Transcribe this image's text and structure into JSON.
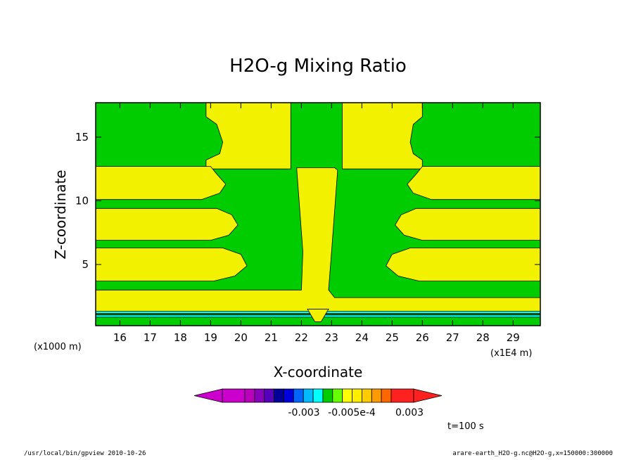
{
  "chart_data": {
    "type": "contour",
    "title": "H2O-g Mixing Ratio",
    "xlabel": "X-coordinate",
    "ylabel": "Z-coordinate",
    "x_unit_label": "(x1E4 m)",
    "y_unit_label": "(x1000 m)",
    "xlim": [
      15.2,
      29.9
    ],
    "ylim": [
      0.2,
      17.7
    ],
    "x_ticks": [
      16,
      17,
      18,
      19,
      20,
      21,
      22,
      23,
      24,
      25,
      26,
      27,
      28,
      29
    ],
    "x_tick_labels": [
      "16",
      "17",
      "18",
      "19",
      "20",
      "21",
      "22",
      "23",
      "24",
      "25",
      "26",
      "27",
      "28",
      "29"
    ],
    "y_ticks": [
      5,
      10,
      15
    ],
    "y_tick_labels": [
      "5",
      "10",
      "15"
    ],
    "grid": false,
    "colors": {
      "green": "#00cc00",
      "yellow": "#f2f200",
      "cyan": "#00ffff",
      "blue": "#0066ff",
      "orange": "#ff9900",
      "red": "#ff2020",
      "magenta": "#cc00cc"
    },
    "regions": [
      {
        "color": "yellow",
        "polygon": [
          [
            18.85,
            17.7
          ],
          [
            21.65,
            17.7
          ],
          [
            21.65,
            12.5
          ],
          [
            18.85,
            12.5
          ],
          [
            18.85,
            13.2
          ],
          [
            19.3,
            13.7
          ],
          [
            19.4,
            14.6
          ],
          [
            19.2,
            16.0
          ],
          [
            18.85,
            16.6
          ]
        ]
      },
      {
        "color": "yellow",
        "polygon": [
          [
            23.35,
            17.7
          ],
          [
            26.0,
            17.7
          ],
          [
            26.0,
            16.6
          ],
          [
            25.7,
            16.0
          ],
          [
            25.6,
            14.6
          ],
          [
            25.7,
            13.7
          ],
          [
            26.0,
            13.2
          ],
          [
            26.0,
            12.5
          ],
          [
            23.35,
            12.5
          ]
        ]
      },
      {
        "color": "yellow",
        "polygon": [
          [
            15.2,
            12.7
          ],
          [
            19.0,
            12.7
          ],
          [
            19.2,
            12.1
          ],
          [
            19.5,
            11.3
          ],
          [
            19.3,
            10.6
          ],
          [
            18.7,
            10.1
          ],
          [
            15.2,
            10.1
          ]
        ]
      },
      {
        "color": "yellow",
        "polygon": [
          [
            29.9,
            12.7
          ],
          [
            26.0,
            12.7
          ],
          [
            25.8,
            12.1
          ],
          [
            25.5,
            11.3
          ],
          [
            25.7,
            10.6
          ],
          [
            26.3,
            10.1
          ],
          [
            29.9,
            10.1
          ]
        ]
      },
      {
        "color": "yellow",
        "polygon": [
          [
            15.2,
            9.4
          ],
          [
            19.2,
            9.4
          ],
          [
            19.7,
            8.9
          ],
          [
            19.9,
            8.1
          ],
          [
            19.6,
            7.3
          ],
          [
            19.0,
            6.9
          ],
          [
            15.2,
            6.9
          ]
        ]
      },
      {
        "color": "yellow",
        "polygon": [
          [
            29.9,
            9.4
          ],
          [
            25.8,
            9.4
          ],
          [
            25.3,
            8.9
          ],
          [
            25.1,
            8.1
          ],
          [
            25.4,
            7.3
          ],
          [
            26.0,
            6.9
          ],
          [
            29.9,
            6.9
          ]
        ]
      },
      {
        "color": "yellow",
        "polygon": [
          [
            15.2,
            6.3
          ],
          [
            19.4,
            6.3
          ],
          [
            20.0,
            5.8
          ],
          [
            20.2,
            4.9
          ],
          [
            19.8,
            4.1
          ],
          [
            19.1,
            3.7
          ],
          [
            15.2,
            3.7
          ]
        ]
      },
      {
        "color": "yellow",
        "polygon": [
          [
            29.9,
            6.3
          ],
          [
            25.6,
            6.3
          ],
          [
            25.0,
            5.8
          ],
          [
            24.8,
            4.9
          ],
          [
            25.2,
            4.1
          ],
          [
            25.9,
            3.7
          ],
          [
            29.9,
            3.7
          ]
        ]
      },
      {
        "color": "yellow",
        "polygon": [
          [
            21.85,
            12.6
          ],
          [
            23.1,
            12.6
          ],
          [
            23.2,
            12.4
          ],
          [
            23.0,
            6.0
          ],
          [
            22.9,
            3.0
          ],
          [
            23.1,
            2.4
          ],
          [
            29.9,
            2.4
          ],
          [
            29.9,
            1.1
          ],
          [
            15.2,
            1.1
          ],
          [
            15.2,
            3.0
          ],
          [
            22.0,
            3.0
          ],
          [
            22.05,
            6.0
          ],
          [
            21.85,
            12.4
          ]
        ]
      }
    ],
    "bands": [
      {
        "color": "cyan",
        "y": 1.25
      },
      {
        "color": "cyan",
        "y": 0.95
      }
    ],
    "colorbar": {
      "colors": [
        "#cc00cc",
        "#bb00bb",
        "#8800bb",
        "#5500bb",
        "#000099",
        "#0000dd",
        "#0066ff",
        "#00bbff",
        "#00ffff",
        "#00cc00",
        "#66ff00",
        "#ffff00",
        "#ffee00",
        "#ffcc00",
        "#ff9900",
        "#ff6600",
        "#ff2020"
      ],
      "labels": [
        "-0.003",
        "-0.005e-4",
        "0.003"
      ]
    },
    "annotation": "t=100 s"
  },
  "footer": {
    "left": "/usr/local/bin/gpview   2010-10-26",
    "right": "arare-earth_H2O-g.nc@H2O-g,x=150000:300000"
  }
}
